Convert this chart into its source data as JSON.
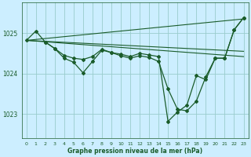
{
  "bg_color": "#cceeff",
  "grid_color": "#99cccc",
  "line_color": "#1a5c2a",
  "xlabel": "Graphe pression niveau de la mer (hPa)",
  "xlim": [
    -0.5,
    23.5
  ],
  "ylim": [
    1022.4,
    1025.75
  ],
  "yticks": [
    1023,
    1024,
    1025
  ],
  "xticks": [
    0,
    1,
    2,
    3,
    4,
    5,
    6,
    7,
    8,
    9,
    10,
    11,
    12,
    13,
    14,
    15,
    16,
    17,
    18,
    19,
    20,
    21,
    22,
    23
  ],
  "smooth_line1_x": [
    0,
    23
  ],
  "smooth_line1_y": [
    1024.82,
    1025.35
  ],
  "smooth_line2_x": [
    0,
    23
  ],
  "smooth_line2_y": [
    1024.82,
    1024.55
  ],
  "smooth_line3_x": [
    0,
    23
  ],
  "smooth_line3_y": [
    1024.82,
    1024.42
  ],
  "marked_line1_x": [
    0,
    1,
    2,
    3,
    4,
    5,
    6,
    7,
    8,
    9,
    10,
    11,
    12,
    13,
    14,
    15,
    16,
    17,
    18,
    19,
    20,
    21,
    22,
    23
  ],
  "marked_line1_y": [
    1024.82,
    1025.05,
    1024.78,
    1024.62,
    1024.38,
    1024.28,
    1024.02,
    1024.3,
    1024.58,
    1024.52,
    1024.48,
    1024.42,
    1024.5,
    1024.46,
    1024.42,
    1022.82,
    1023.05,
    1023.22,
    1023.95,
    1023.85,
    1024.38,
    1024.38,
    1025.08,
    1025.38
  ],
  "marked_line2_x": [
    2,
    3,
    4,
    5,
    6,
    7,
    8,
    9,
    10,
    11,
    12,
    13,
    14,
    15,
    16,
    17,
    18,
    19,
    20,
    21,
    22,
    23
  ],
  "marked_line2_y": [
    1024.78,
    1024.62,
    1024.45,
    1024.38,
    1024.35,
    1024.42,
    1024.6,
    1024.52,
    1024.44,
    1024.38,
    1024.44,
    1024.4,
    1024.3,
    1023.62,
    1023.12,
    1023.08,
    1023.32,
    1023.92,
    1024.38,
    1024.38,
    1025.08,
    1025.38
  ],
  "marker": "D",
  "markersize": 2.0,
  "linewidth": 0.9
}
